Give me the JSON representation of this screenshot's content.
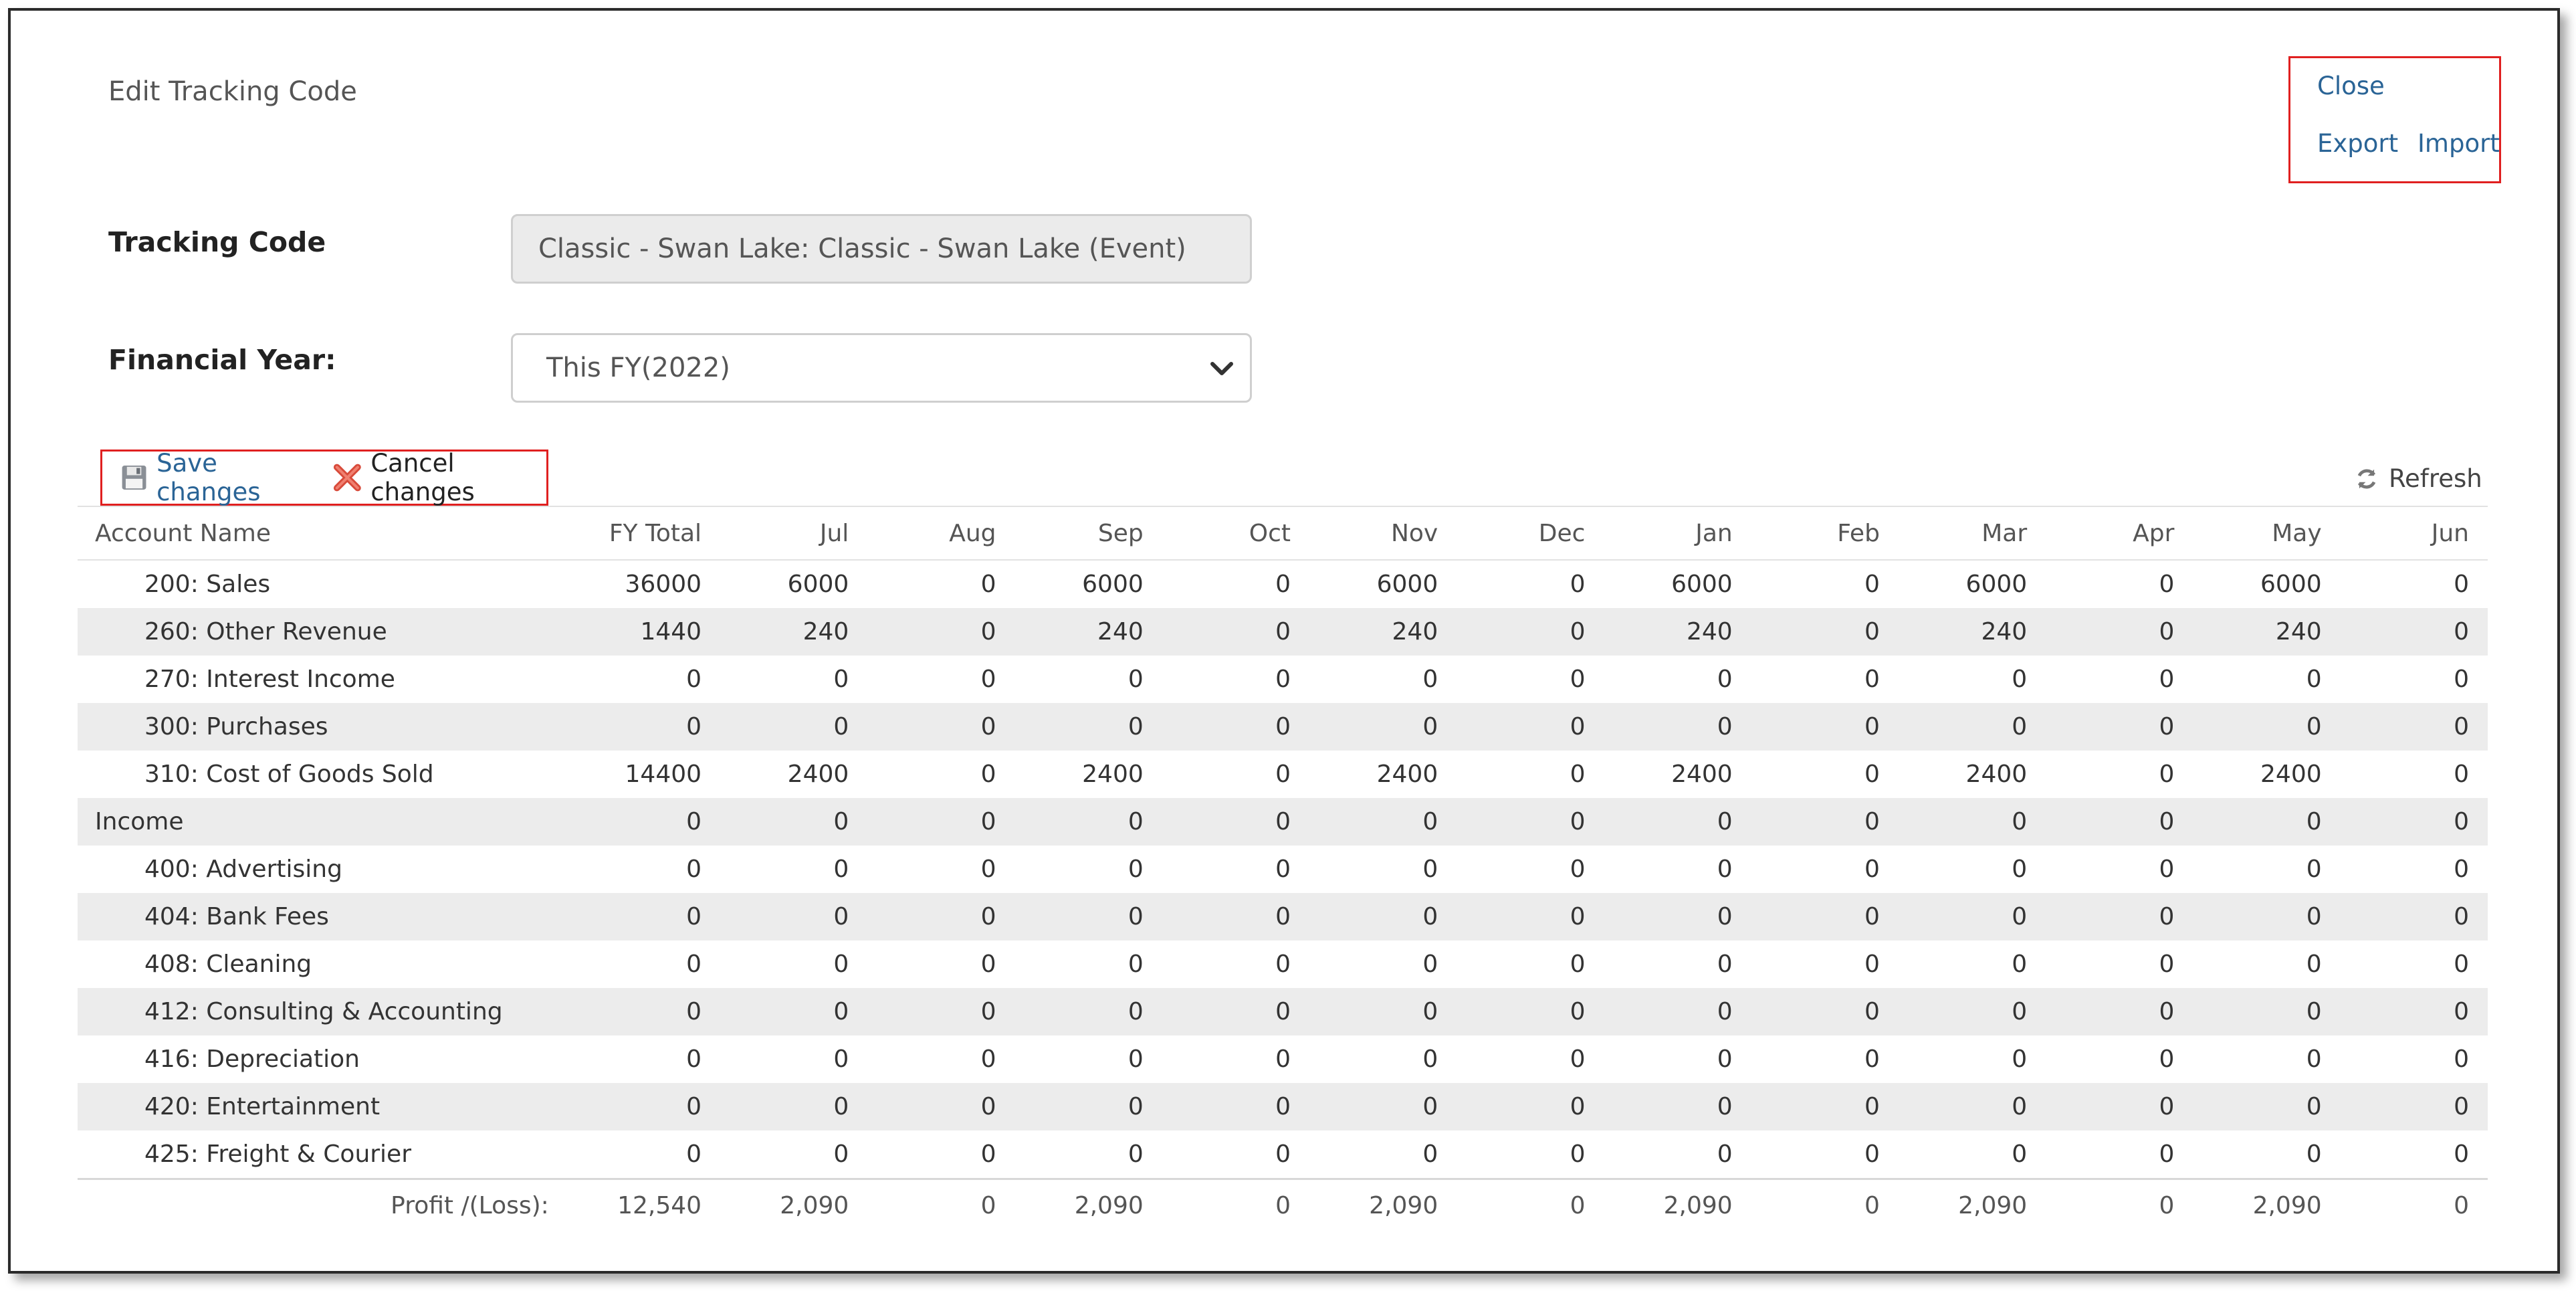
{
  "dialog": {
    "title": "Edit Tracking Code",
    "links": {
      "close": "Close",
      "export": "Export",
      "import": "Import"
    }
  },
  "form": {
    "tracking_code_label": "Tracking Code",
    "tracking_code_value": "Classic - Swan Lake: Classic - Swan Lake (Event)",
    "financial_year_label": "Financial Year:",
    "financial_year_value": "This FY(2022)"
  },
  "toolbar": {
    "save_label": "Save changes",
    "cancel_label": "Cancel changes",
    "refresh_label": "Refresh"
  },
  "table": {
    "columns": [
      "Account Name",
      "FY Total",
      "Jul",
      "Aug",
      "Sep",
      "Oct",
      "Nov",
      "Dec",
      "Jan",
      "Feb",
      "Mar",
      "Apr",
      "May",
      "Jun"
    ],
    "rows": [
      {
        "name": "200: Sales",
        "group": false,
        "values": [
          "36000",
          "6000",
          "0",
          "6000",
          "0",
          "6000",
          "0",
          "6000",
          "0",
          "6000",
          "0",
          "6000",
          "0"
        ]
      },
      {
        "name": "260: Other Revenue",
        "group": false,
        "values": [
          "1440",
          "240",
          "0",
          "240",
          "0",
          "240",
          "0",
          "240",
          "0",
          "240",
          "0",
          "240",
          "0"
        ]
      },
      {
        "name": "270: Interest Income",
        "group": false,
        "values": [
          "0",
          "0",
          "0",
          "0",
          "0",
          "0",
          "0",
          "0",
          "0",
          "0",
          "0",
          "0",
          "0"
        ]
      },
      {
        "name": "300: Purchases",
        "group": false,
        "values": [
          "0",
          "0",
          "0",
          "0",
          "0",
          "0",
          "0",
          "0",
          "0",
          "0",
          "0",
          "0",
          "0"
        ]
      },
      {
        "name": "310: Cost of Goods Sold",
        "group": false,
        "values": [
          "14400",
          "2400",
          "0",
          "2400",
          "0",
          "2400",
          "0",
          "2400",
          "0",
          "2400",
          "0",
          "2400",
          "0"
        ]
      },
      {
        "name": "Income",
        "group": true,
        "values": [
          "0",
          "0",
          "0",
          "0",
          "0",
          "0",
          "0",
          "0",
          "0",
          "0",
          "0",
          "0",
          "0"
        ]
      },
      {
        "name": "400: Advertising",
        "group": false,
        "values": [
          "0",
          "0",
          "0",
          "0",
          "0",
          "0",
          "0",
          "0",
          "0",
          "0",
          "0",
          "0",
          "0"
        ]
      },
      {
        "name": "404: Bank Fees",
        "group": false,
        "values": [
          "0",
          "0",
          "0",
          "0",
          "0",
          "0",
          "0",
          "0",
          "0",
          "0",
          "0",
          "0",
          "0"
        ]
      },
      {
        "name": "408: Cleaning",
        "group": false,
        "values": [
          "0",
          "0",
          "0",
          "0",
          "0",
          "0",
          "0",
          "0",
          "0",
          "0",
          "0",
          "0",
          "0"
        ]
      },
      {
        "name": "412: Consulting & Accounting",
        "group": false,
        "values": [
          "0",
          "0",
          "0",
          "0",
          "0",
          "0",
          "0",
          "0",
          "0",
          "0",
          "0",
          "0",
          "0"
        ]
      },
      {
        "name": "416: Depreciation",
        "group": false,
        "values": [
          "0",
          "0",
          "0",
          "0",
          "0",
          "0",
          "0",
          "0",
          "0",
          "0",
          "0",
          "0",
          "0"
        ]
      },
      {
        "name": "420: Entertainment",
        "group": false,
        "values": [
          "0",
          "0",
          "0",
          "0",
          "0",
          "0",
          "0",
          "0",
          "0",
          "0",
          "0",
          "0",
          "0"
        ]
      },
      {
        "name": "425: Freight & Courier",
        "group": false,
        "values": [
          "0",
          "0",
          "0",
          "0",
          "0",
          "0",
          "0",
          "0",
          "0",
          "0",
          "0",
          "0",
          "0"
        ]
      }
    ],
    "total": {
      "label": "Profit /(Loss):",
      "values": [
        "12,540",
        "2,090",
        "0",
        "2,090",
        "0",
        "2,090",
        "0",
        "2,090",
        "0",
        "2,090",
        "0",
        "2,090",
        "0"
      ]
    }
  },
  "colors": {
    "link": "#2a6496",
    "highlight_border": "#e02020",
    "row_alt": "#ececec"
  }
}
